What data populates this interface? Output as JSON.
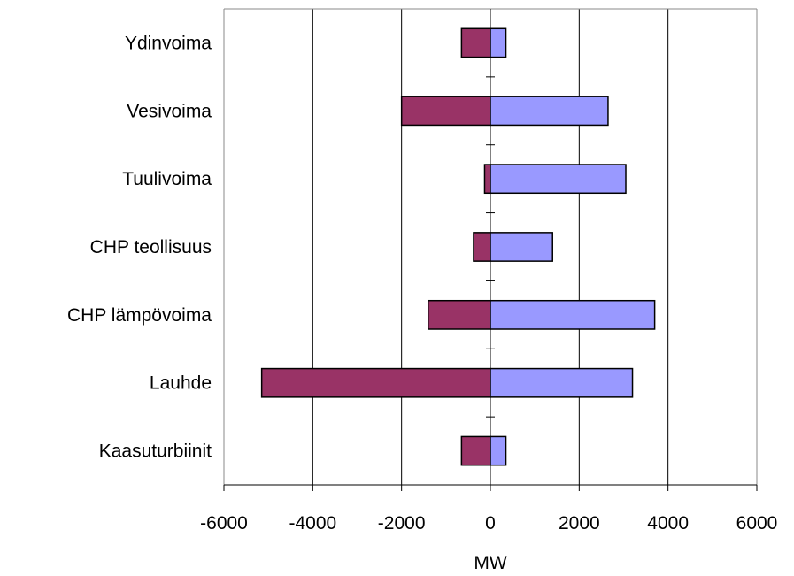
{
  "chart_data": {
    "type": "bar",
    "orientation": "horizontal",
    "stacked": "diverging",
    "categories": [
      "Ydinvoima",
      "Vesivoima",
      "Tuulivoima",
      "CHP teollisuus",
      "CHP lämpövoima",
      "Lauhde",
      "Kaasuturbiinit"
    ],
    "series": [
      {
        "values": [
          -650,
          -2000,
          -130,
          -380,
          -1400,
          -5150,
          -650
        ],
        "color": "#993366"
      },
      {
        "values": [
          350,
          2650,
          3050,
          1400,
          3700,
          3200,
          350
        ],
        "color": "#9999ff"
      }
    ],
    "xlabel": "MW",
    "xlim": [
      -6000,
      6000
    ],
    "xticks": [
      -6000,
      -4000,
      -2000,
      0,
      2000,
      4000,
      6000
    ],
    "grid": {
      "vertical": true,
      "horizontal": false
    },
    "legend": "none"
  }
}
